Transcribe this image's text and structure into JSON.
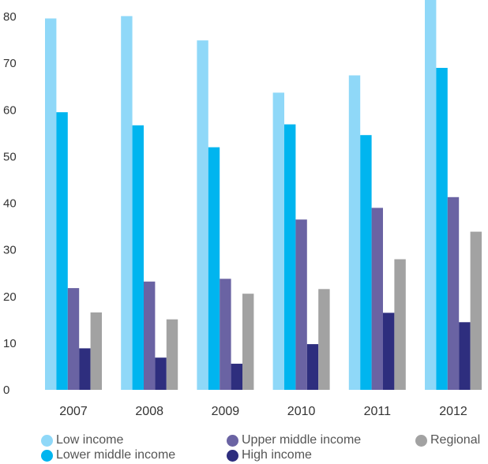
{
  "chart_data": {
    "type": "bar",
    "categories": [
      "2007",
      "2008",
      "2009",
      "2010",
      "2011",
      "2012"
    ],
    "series": [
      {
        "name": "Low income",
        "color": "#8FD8F8",
        "values": [
          79.6,
          80.1,
          74.9,
          63.7,
          67.4,
          84.0
        ]
      },
      {
        "name": "Lower middle income",
        "color": "#00B5EF",
        "values": [
          59.5,
          56.7,
          52.0,
          56.9,
          54.6,
          69.0
        ]
      },
      {
        "name": "Upper middle income",
        "color": "#6A63A3",
        "values": [
          21.8,
          23.2,
          23.8,
          36.5,
          39.0,
          41.3
        ]
      },
      {
        "name": "High income",
        "color": "#2E2E7E",
        "values": [
          8.9,
          6.9,
          5.6,
          9.8,
          16.5,
          14.5
        ]
      },
      {
        "name": "Regional",
        "color": "#A2A2A2",
        "values": [
          16.6,
          15.1,
          20.6,
          21.6,
          28.0,
          33.9
        ]
      }
    ],
    "yticks": [
      "0",
      "10",
      "20",
      "30",
      "40",
      "50",
      "60",
      "70",
      "80"
    ],
    "ylim": [
      0,
      84
    ],
    "grid": false,
    "legend_position": "bottom"
  }
}
